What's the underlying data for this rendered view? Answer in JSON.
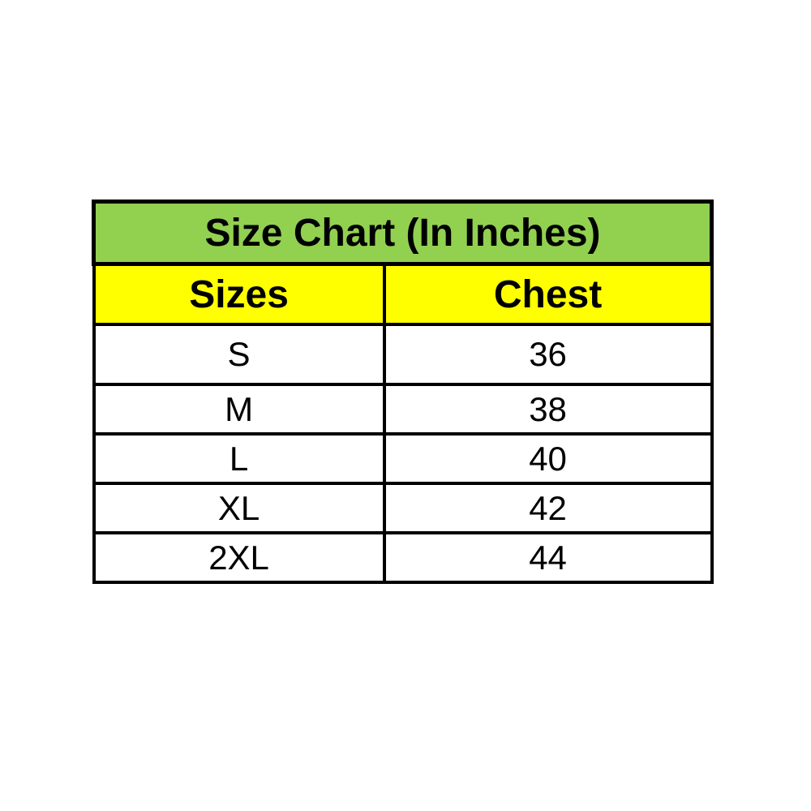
{
  "colors": {
    "title_bg": "#92D050",
    "header_bg": "#FFFF00",
    "row_bg": "#FFFFFF",
    "border": "#000000",
    "text": "#000000",
    "page_bg": "#FFFFFF"
  },
  "chart_data": {
    "type": "table",
    "title": "Size Chart (In Inches)",
    "columns": [
      "Sizes",
      "Chest"
    ],
    "rows": [
      {
        "size": "S",
        "chest": "36"
      },
      {
        "size": "M",
        "chest": "38"
      },
      {
        "size": "L",
        "chest": "40"
      },
      {
        "size": "XL",
        "chest": "42"
      },
      {
        "size": "2XL",
        "chest": "44"
      }
    ]
  }
}
